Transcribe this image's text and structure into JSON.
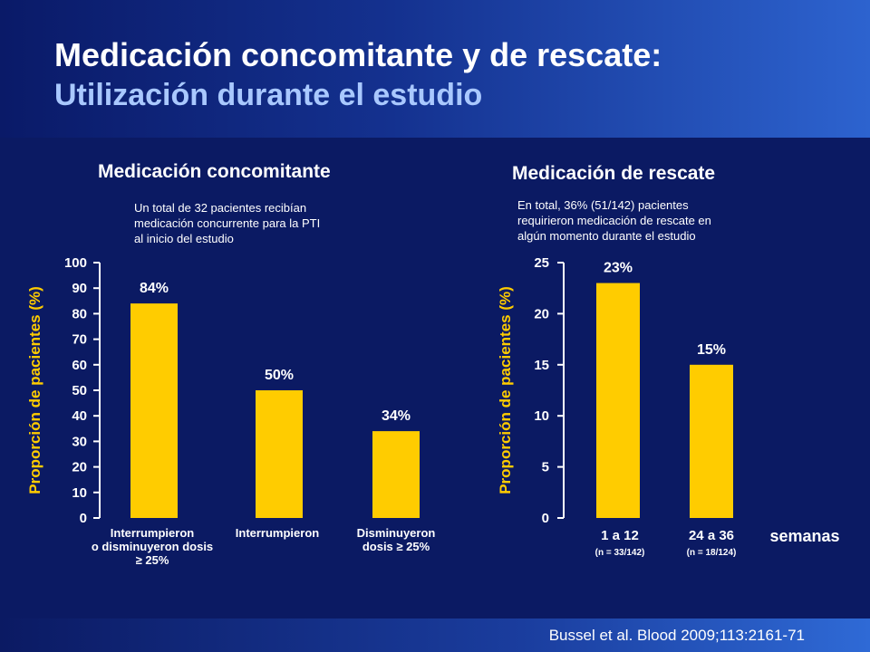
{
  "header": {
    "title": "Medicación concomitante y de rescate:",
    "subtitle": "Utilización durante el estudio"
  },
  "footer": {
    "citation": "Bussel et al. Blood 2009;113:2161-71"
  },
  "colors": {
    "bar": "#ffcc00",
    "background": "#0b1a63",
    "subtitle": "#a9c8ff"
  },
  "chart_data": [
    {
      "type": "bar",
      "title": "Medicación concomitante",
      "note": [
        "Un total de 32 pacientes recibían",
        "medicación concurrente para la PTI",
        "al inicio del estudio"
      ],
      "ylabel": "Proporción de pacientes (%)",
      "ylim": [
        0,
        100
      ],
      "yticks": [
        0,
        10,
        20,
        30,
        40,
        50,
        60,
        70,
        80,
        90,
        100
      ],
      "categories": [
        [
          "Interrumpieron",
          "o disminuyeron dosis",
          "≥ 25%"
        ],
        [
          "Interrumpieron"
        ],
        [
          "Disminuyeron",
          "dosis ≥ 25%"
        ]
      ],
      "values": [
        84,
        50,
        34
      ],
      "data_labels": [
        "84%",
        "50%",
        "34%"
      ],
      "grid": false
    },
    {
      "type": "bar",
      "title": "Medicación de rescate",
      "note": [
        "En total, 36% (51/142) pacientes",
        "requirieron medicación de rescate en",
        "algún momento durante el estudio"
      ],
      "ylabel": "Proporción de pacientes (%)",
      "xlabel": "semanas",
      "ylim": [
        0,
        25
      ],
      "yticks": [
        0,
        5,
        10,
        15,
        20,
        25
      ],
      "categories": [
        "1 a 12",
        "24 a 36"
      ],
      "category_sublabels": [
        "(n = 33/142)",
        "(n = 18/124)"
      ],
      "values": [
        23,
        15
      ],
      "data_labels": [
        "23%",
        "15%"
      ],
      "grid": false
    }
  ]
}
